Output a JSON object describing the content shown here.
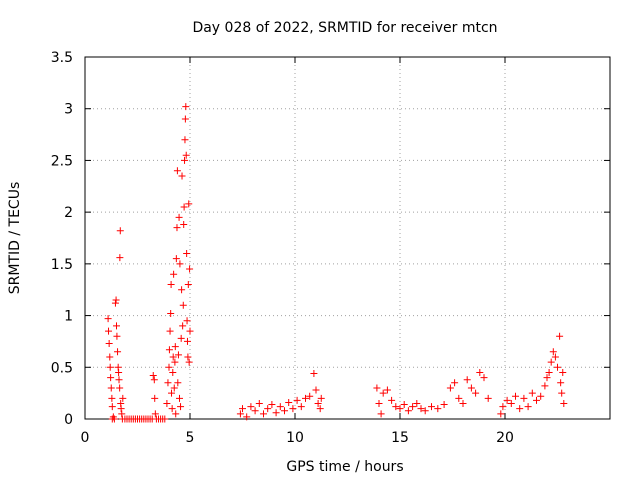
{
  "chart_data": {
    "type": "scatter",
    "title": "Day 028 of 2022, SRMTID for receiver mtcn",
    "xlabel": "GPS time / hours",
    "ylabel": "SRMTID / TECUs",
    "xlim": [
      0,
      25
    ],
    "ylim": [
      0,
      3.5
    ],
    "xticks": [
      0,
      5,
      10,
      15,
      20
    ],
    "xtick_labels": [
      "0",
      "5",
      "10",
      "15",
      "20"
    ],
    "yticks": [
      0,
      0.5,
      1,
      1.5,
      2,
      2.5,
      3,
      3.5
    ],
    "ytick_labels": [
      "0",
      "0.5",
      "1",
      "1.5",
      "2",
      "2.5",
      "3",
      "3.5"
    ],
    "grid": true,
    "marker": "+",
    "marker_color": "#ff0000",
    "series": [
      {
        "name": "SRMTID",
        "points": [
          [
            1.1,
            0.97
          ],
          [
            1.12,
            0.85
          ],
          [
            1.15,
            0.73
          ],
          [
            1.18,
            0.6
          ],
          [
            1.2,
            0.5
          ],
          [
            1.22,
            0.4
          ],
          [
            1.25,
            0.3
          ],
          [
            1.28,
            0.2
          ],
          [
            1.3,
            0.12
          ],
          [
            1.3,
            0.0
          ],
          [
            1.35,
            0.02
          ],
          [
            1.4,
            0.0
          ],
          [
            1.45,
            1.12
          ],
          [
            1.48,
            1.15
          ],
          [
            1.5,
            0.9
          ],
          [
            1.52,
            0.8
          ],
          [
            1.55,
            0.65
          ],
          [
            1.58,
            0.5
          ],
          [
            1.6,
            0.45
          ],
          [
            1.62,
            0.38
          ],
          [
            1.65,
            0.3
          ],
          [
            1.66,
            1.56
          ],
          [
            1.68,
            1.82
          ],
          [
            1.7,
            0.15
          ],
          [
            1.72,
            0.1
          ],
          [
            1.75,
            0.05
          ],
          [
            1.78,
            0.0
          ],
          [
            1.8,
            0.2
          ],
          [
            1.9,
            0.0
          ],
          [
            2.0,
            0.0
          ],
          [
            2.1,
            0.0
          ],
          [
            2.2,
            0.0
          ],
          [
            2.3,
            0.0
          ],
          [
            2.4,
            0.0
          ],
          [
            2.5,
            0.0
          ],
          [
            2.6,
            0.0
          ],
          [
            2.7,
            0.0
          ],
          [
            2.8,
            0.0
          ],
          [
            2.9,
            0.0
          ],
          [
            3.0,
            0.0
          ],
          [
            3.1,
            0.0
          ],
          [
            3.2,
            0.0
          ],
          [
            3.25,
            0.42
          ],
          [
            3.3,
            0.38
          ],
          [
            3.32,
            0.2
          ],
          [
            3.35,
            0.05
          ],
          [
            3.4,
            0.0
          ],
          [
            3.5,
            0.0
          ],
          [
            3.6,
            0.0
          ],
          [
            3.7,
            0.0
          ],
          [
            3.8,
            0.0
          ],
          [
            3.9,
            0.15
          ],
          [
            3.95,
            0.35
          ],
          [
            4.0,
            0.5
          ],
          [
            4.02,
            0.67
          ],
          [
            4.05,
            0.85
          ],
          [
            4.08,
            1.02
          ],
          [
            4.1,
            1.3
          ],
          [
            4.12,
            0.25
          ],
          [
            4.15,
            0.1
          ],
          [
            4.18,
            0.45
          ],
          [
            4.2,
            0.6
          ],
          [
            4.22,
            1.4
          ],
          [
            4.25,
            0.3
          ],
          [
            4.28,
            0.55
          ],
          [
            4.3,
            0.7
          ],
          [
            4.32,
            0.05
          ],
          [
            4.35,
            1.55
          ],
          [
            4.38,
            1.85
          ],
          [
            4.4,
            2.4
          ],
          [
            4.42,
            0.35
          ],
          [
            4.45,
            0.62
          ],
          [
            4.48,
            1.95
          ],
          [
            4.5,
            0.2
          ],
          [
            4.52,
            1.5
          ],
          [
            4.55,
            0.12
          ],
          [
            4.58,
            0.78
          ],
          [
            4.6,
            1.25
          ],
          [
            4.62,
            2.35
          ],
          [
            4.65,
            0.9
          ],
          [
            4.68,
            1.1
          ],
          [
            4.7,
            1.88
          ],
          [
            4.72,
            2.05
          ],
          [
            4.74,
            2.5
          ],
          [
            4.76,
            2.7
          ],
          [
            4.78,
            2.9
          ],
          [
            4.8,
            3.02
          ],
          [
            4.82,
            2.55
          ],
          [
            4.84,
            1.6
          ],
          [
            4.86,
            0.95
          ],
          [
            4.88,
            0.75
          ],
          [
            4.9,
            0.6
          ],
          [
            4.92,
            1.3
          ],
          [
            4.94,
            2.08
          ],
          [
            4.96,
            0.55
          ],
          [
            4.98,
            1.45
          ],
          [
            5.0,
            0.85
          ],
          [
            7.4,
            0.05
          ],
          [
            7.5,
            0.1
          ],
          [
            7.7,
            0.02
          ],
          [
            7.9,
            0.12
          ],
          [
            8.1,
            0.08
          ],
          [
            8.3,
            0.15
          ],
          [
            8.5,
            0.05
          ],
          [
            8.7,
            0.1
          ],
          [
            8.9,
            0.14
          ],
          [
            9.1,
            0.06
          ],
          [
            9.3,
            0.12
          ],
          [
            9.5,
            0.08
          ],
          [
            9.7,
            0.16
          ],
          [
            9.9,
            0.1
          ],
          [
            10.1,
            0.18
          ],
          [
            10.3,
            0.12
          ],
          [
            10.5,
            0.2
          ],
          [
            10.7,
            0.22
          ],
          [
            10.9,
            0.44
          ],
          [
            11.0,
            0.28
          ],
          [
            11.1,
            0.15
          ],
          [
            11.2,
            0.1
          ],
          [
            11.25,
            0.2
          ],
          [
            13.9,
            0.3
          ],
          [
            14.0,
            0.15
          ],
          [
            14.1,
            0.05
          ],
          [
            14.2,
            0.25
          ],
          [
            14.4,
            0.28
          ],
          [
            14.6,
            0.18
          ],
          [
            14.8,
            0.12
          ],
          [
            15.0,
            0.1
          ],
          [
            15.2,
            0.14
          ],
          [
            15.4,
            0.08
          ],
          [
            15.6,
            0.12
          ],
          [
            15.8,
            0.15
          ],
          [
            16.0,
            0.1
          ],
          [
            16.2,
            0.08
          ],
          [
            16.5,
            0.12
          ],
          [
            16.8,
            0.1
          ],
          [
            17.1,
            0.14
          ],
          [
            17.4,
            0.3
          ],
          [
            17.6,
            0.35
          ],
          [
            17.8,
            0.2
          ],
          [
            18.0,
            0.15
          ],
          [
            18.2,
            0.38
          ],
          [
            18.4,
            0.3
          ],
          [
            18.6,
            0.25
          ],
          [
            18.8,
            0.45
          ],
          [
            19.0,
            0.4
          ],
          [
            19.2,
            0.2
          ],
          [
            19.8,
            0.05
          ],
          [
            19.9,
            0.12
          ],
          [
            20.1,
            0.18
          ],
          [
            20.3,
            0.15
          ],
          [
            20.5,
            0.22
          ],
          [
            20.7,
            0.1
          ],
          [
            20.9,
            0.2
          ],
          [
            21.1,
            0.12
          ],
          [
            21.3,
            0.25
          ],
          [
            21.5,
            0.18
          ],
          [
            21.7,
            0.22
          ],
          [
            21.9,
            0.32
          ],
          [
            22.0,
            0.4
          ],
          [
            22.1,
            0.45
          ],
          [
            22.2,
            0.55
          ],
          [
            22.3,
            0.65
          ],
          [
            22.4,
            0.6
          ],
          [
            22.5,
            0.5
          ],
          [
            22.6,
            0.8
          ],
          [
            22.65,
            0.35
          ],
          [
            22.7,
            0.25
          ],
          [
            22.75,
            0.45
          ],
          [
            22.8,
            0.15
          ]
        ]
      }
    ]
  }
}
